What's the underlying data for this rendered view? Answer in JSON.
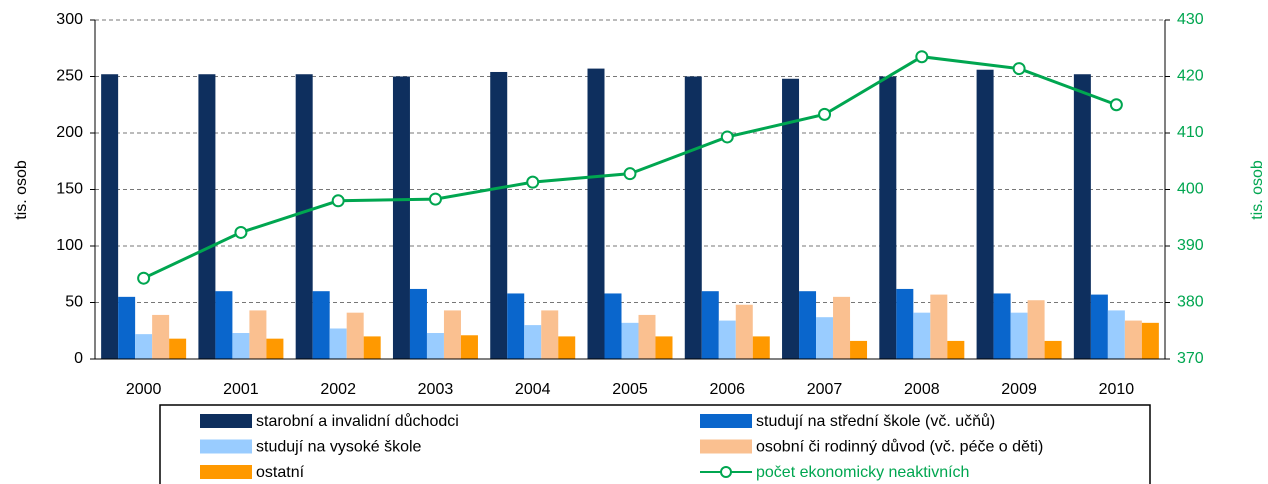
{
  "chart_data": {
    "type": "bar",
    "categories": [
      "2000",
      "2001",
      "2002",
      "2003",
      "2004",
      "2005",
      "2006",
      "2007",
      "2008",
      "2009",
      "2010"
    ],
    "ylabel": "tis. osob",
    "y2label": "tis. osob",
    "ylim": [
      0,
      300
    ],
    "yticks": [
      0,
      50,
      100,
      150,
      200,
      250,
      300
    ],
    "y2lim": [
      370,
      430
    ],
    "y2ticks": [
      370,
      380,
      390,
      400,
      410,
      420,
      430
    ],
    "grid": true,
    "series": [
      {
        "name": "starobní a invalidní důchodci",
        "color": "#0e2f5e",
        "values": [
          252,
          252,
          252,
          250,
          254,
          257,
          250,
          248,
          250,
          256,
          252
        ]
      },
      {
        "name": "studují na střední škole (vč. učňů)",
        "color": "#0a66cc",
        "values": [
          55,
          60,
          60,
          62,
          58,
          58,
          60,
          60,
          62,
          58,
          57
        ]
      },
      {
        "name": "studují na vysoké škole",
        "color": "#99ccff",
        "values": [
          22,
          23,
          27,
          23,
          30,
          32,
          34,
          37,
          41,
          41,
          43
        ]
      },
      {
        "name": "osobní či rodinný důvod (vč. péče o děti)",
        "color": "#fac090",
        "values": [
          39,
          43,
          41,
          43,
          43,
          39,
          48,
          55,
          57,
          52,
          34
        ]
      },
      {
        "name": "ostatní",
        "color": "#ff9900",
        "values": [
          18,
          18,
          20,
          21,
          20,
          20,
          20,
          16,
          16,
          16,
          32
        ]
      },
      {
        "name": "počet ekonomicky neaktivních",
        "color": "#00a650",
        "type": "line",
        "axis": "y2",
        "values": [
          384.3,
          392.4,
          398,
          398.3,
          401.3,
          402.8,
          409.3,
          413.3,
          423.5,
          421.4,
          415
        ]
      }
    ]
  }
}
